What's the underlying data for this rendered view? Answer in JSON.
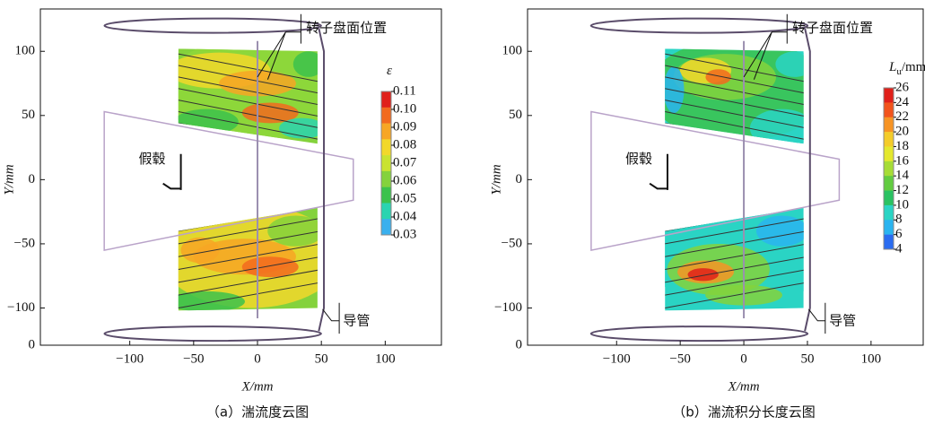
{
  "chart_data": [
    {
      "type": "contour",
      "caption": "（a）湍流度云图",
      "xlabel": "X/mm",
      "ylabel": "Y/mm",
      "corner_label": "0",
      "xlim": [
        -170,
        144
      ],
      "ylim": [
        -129,
        133
      ],
      "xticks": [
        {
          "value": -100,
          "label": "−100"
        },
        {
          "value": -50,
          "label": "−50"
        },
        0,
        50,
        100
      ],
      "yticks": [
        100,
        50,
        0,
        {
          "value": -50,
          "label": "−50"
        },
        {
          "value": -100,
          "label": "−100"
        }
      ],
      "rotor_label": "转子盘面位置",
      "hub_label": "假毂",
      "duct_label": "导管",
      "colorbar": {
        "label": {
          "symbol": "ε"
        },
        "ticks": [
          {
            "value": 0.11,
            "label": "0.11"
          },
          {
            "value": 0.1,
            "label": "0.10"
          },
          {
            "value": 0.09,
            "label": "0.09"
          },
          {
            "value": 0.08,
            "label": "0.08"
          },
          {
            "value": 0.07,
            "label": "0.07"
          },
          {
            "value": 0.06,
            "label": "0.06"
          },
          {
            "value": 0.05,
            "label": "0.05"
          },
          {
            "value": 0.04,
            "label": "0.04"
          },
          {
            "value": 0.03,
            "label": "0.03"
          }
        ],
        "colors": [
          "#e0201a",
          "#f26a1e",
          "#f7a624",
          "#f2d82a",
          "#c9e330",
          "#84d23c",
          "#3cc24c",
          "#2ad4b0",
          "#3ab0ee"
        ]
      }
    },
    {
      "type": "contour",
      "caption": "（b）湍流积分长度云图",
      "xlabel": "X/mm",
      "ylabel": "Y/mm",
      "corner_label": "0",
      "xlim": [
        -170,
        141
      ],
      "ylim": [
        -129,
        133
      ],
      "xticks": [
        {
          "value": -100,
          "label": "−100"
        },
        {
          "value": -50,
          "label": "−50"
        },
        0,
        50,
        100
      ],
      "yticks": [
        100,
        50,
        0,
        {
          "value": -50,
          "label": "−50"
        },
        {
          "value": -100,
          "label": "−100"
        }
      ],
      "rotor_label": "转子盘面位置",
      "hub_label": "假毂",
      "duct_label": "导管",
      "colorbar": {
        "label": {
          "symbol": "L",
          "subscript": "u",
          "unit": "/mm"
        },
        "ticks": [
          26,
          24,
          22,
          20,
          18,
          16,
          14,
          12,
          10,
          8,
          6,
          4
        ],
        "colors": [
          "#e0201a",
          "#f2541c",
          "#f79424",
          "#f4cc2a",
          "#e4e82e",
          "#a6dc36",
          "#62cc40",
          "#2ac262",
          "#2ad4c4",
          "#2ab4f0",
          "#2a6cf0"
        ]
      }
    }
  ]
}
